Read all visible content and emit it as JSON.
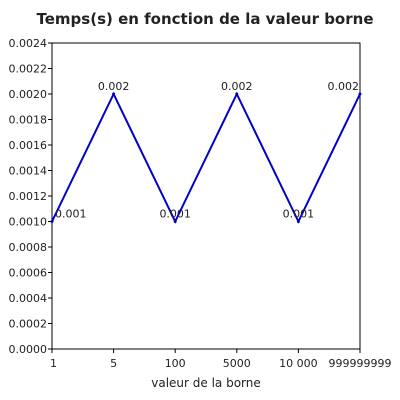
{
  "chart_data": {
    "type": "line",
    "title": "Temps(s) en fonction de la valeur borne",
    "xlabel": "valeur de la borne",
    "ylabel": "",
    "categories": [
      "1",
      "5",
      "100",
      "5000",
      "10 000",
      "999999999"
    ],
    "series": [
      {
        "values": [
          0.001,
          0.002,
          0.001,
          0.002,
          0.001,
          0.002
        ],
        "color": "#0000cc",
        "data_labels": [
          "0.001",
          "0.002",
          "0.001",
          "0.002",
          "0.001",
          "0.002"
        ]
      }
    ],
    "ylim": [
      0,
      0.0024
    ],
    "y_ticks": [
      "0.0000",
      "0.0002",
      "0.0004",
      "0.0006",
      "0.0008",
      "0.0010",
      "0.0012",
      "0.0014",
      "0.0016",
      "0.0018",
      "0.0020",
      "0.0022",
      "0.0024"
    ],
    "grid": false,
    "legend": "none"
  }
}
